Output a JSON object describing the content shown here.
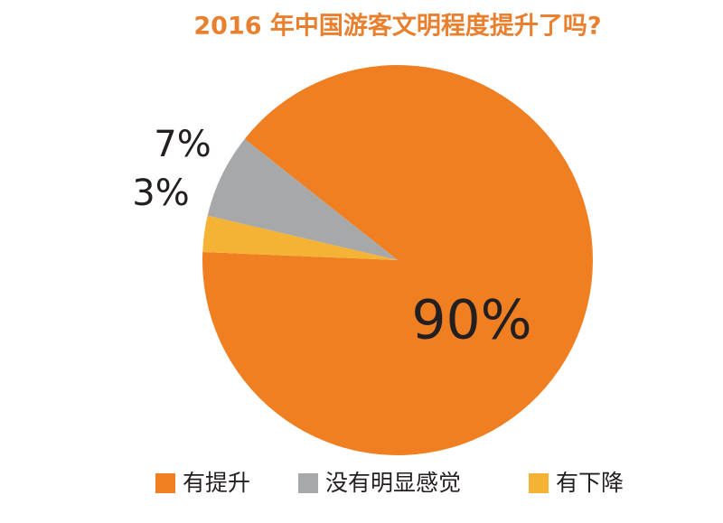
{
  "chart_data": {
    "type": "pie",
    "title": "2016 年中国游客文明程度提升了吗?",
    "categories": [
      "有提升",
      "没有明显感觉",
      "有下降"
    ],
    "values": [
      90,
      7,
      3
    ],
    "value_labels": [
      "90%",
      "7%",
      "3%"
    ],
    "colors": [
      "#f07f22",
      "#a7a8aa",
      "#f5b335"
    ],
    "legend": "bottom"
  }
}
